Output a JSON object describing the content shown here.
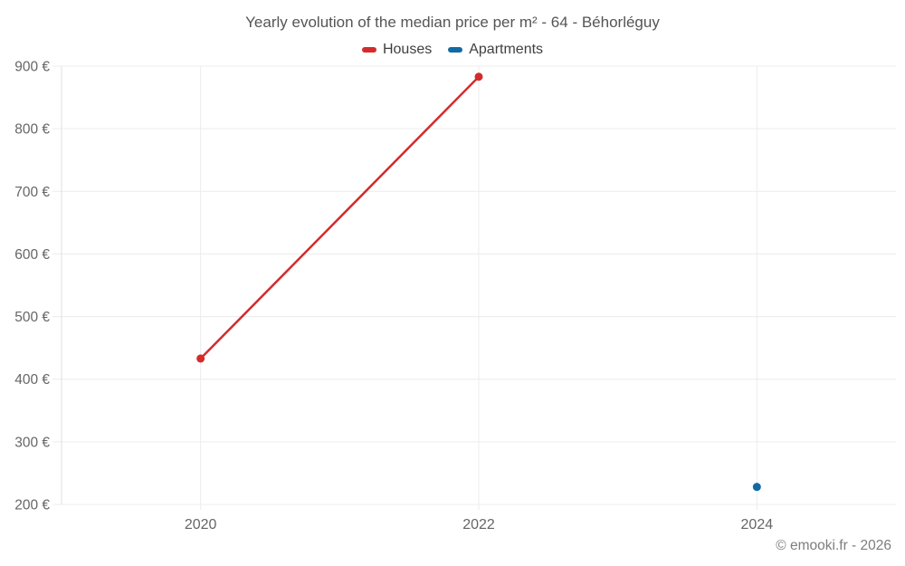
{
  "title": "Yearly evolution of the median price per m² - 64 - Béhorléguy",
  "legend": {
    "items": [
      {
        "label": "Houses",
        "color": "#d42b2c"
      },
      {
        "label": "Apartments",
        "color": "#126aa3"
      }
    ]
  },
  "attribution": "© emooki.fr - 2026",
  "chart_data": {
    "type": "line",
    "title": "Yearly evolution of the median price per m² - 64 - Béhorléguy",
    "xlabel": "",
    "ylabel": "",
    "series": [
      {
        "name": "Houses",
        "color": "#d42b2c",
        "points": [
          {
            "x": 2020,
            "y": 433
          },
          {
            "x": 2022,
            "y": 883
          }
        ]
      },
      {
        "name": "Apartments",
        "color": "#126aa3",
        "points": [
          {
            "x": 2024,
            "y": 228
          }
        ]
      }
    ],
    "x_ticks": [
      2020,
      2022,
      2024
    ],
    "xlim": [
      2019,
      2025
    ],
    "y_ticks": [
      200,
      300,
      400,
      500,
      600,
      700,
      800,
      900
    ],
    "ylim": [
      200,
      900
    ],
    "y_tick_suffix": " €",
    "grid": true,
    "legend_position": "top",
    "marker_radius": 4.5,
    "line_width": 2.5
  },
  "colors": {
    "gridline": "#ececec",
    "axis_line": "#e0e0e0",
    "tick_label": "#666666",
    "title_text": "#555555",
    "legend_text": "#3f3f3f",
    "attribution_text": "#7d7d7d",
    "background": "#ffffff"
  }
}
